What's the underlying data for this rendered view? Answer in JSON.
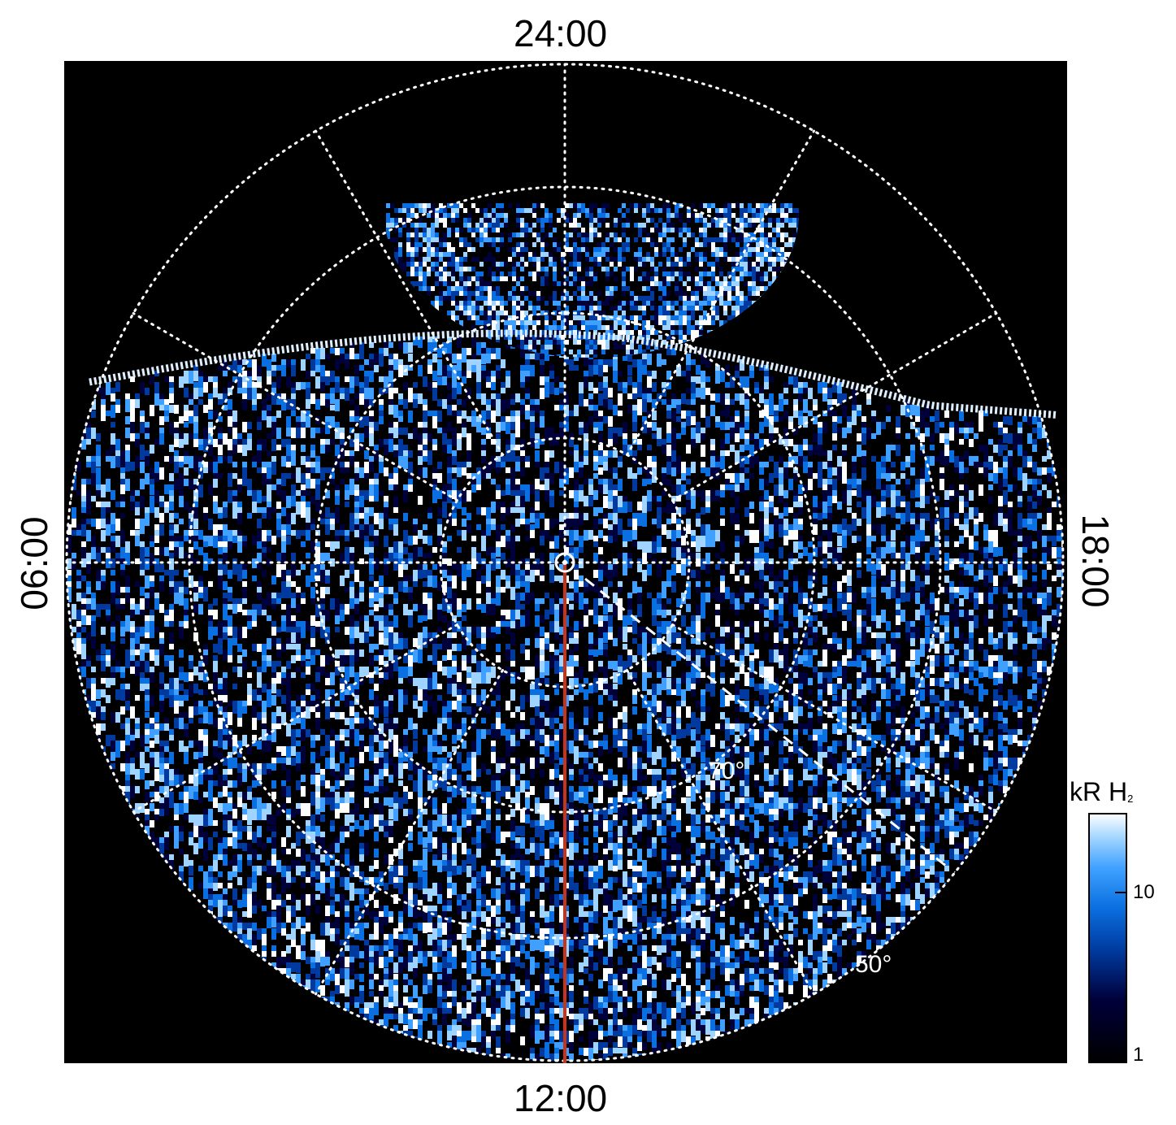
{
  "labels": {
    "top": "24:00",
    "bottom": "12:00",
    "left": "06:00",
    "right": "18:00",
    "lat_70": "70°",
    "lat_50": "50°"
  },
  "colorbar": {
    "unit": "kR H",
    "subscript": "2",
    "ticks": [
      "10",
      "1"
    ],
    "colors": [
      "#000000",
      "#00003a",
      "#003a9e",
      "#0a6fe0",
      "#3fa0ff",
      "#9ed4ff",
      "#ffffff"
    ]
  },
  "colors": {
    "background": "#000000",
    "grid": "#ffffff",
    "meridian": "#c8331a"
  }
}
